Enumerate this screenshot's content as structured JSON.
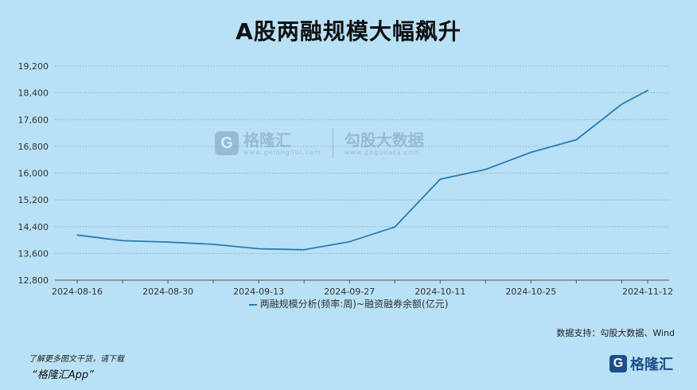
{
  "chart_data": {
    "type": "line",
    "title": "A股两融规模大幅飙升",
    "x": [
      "2024-08-16",
      "2024-08-23",
      "2024-08-30",
      "2024-09-06",
      "2024-09-13",
      "2024-09-20",
      "2024-09-27",
      "2024-10-04",
      "2024-10-11",
      "2024-10-18",
      "2024-10-25",
      "2024-11-01",
      "2024-11-08",
      "2024-11-12"
    ],
    "x_tick_labels": [
      "2024-08-16",
      "2024-08-30",
      "2024-09-13",
      "2024-09-27",
      "2024-10-11",
      "2024-10-25",
      "2024-11-12"
    ],
    "series": [
      {
        "name": "两融规模分析(频率:周)~融资融券余额(亿元)",
        "values": [
          14150,
          13980,
          13940,
          13870,
          13740,
          13710,
          13950,
          14390,
          15820,
          16110,
          16620,
          17000,
          18060,
          18470
        ]
      }
    ],
    "y_ticks": [
      "12,800",
      "13,600",
      "14,400",
      "15,200",
      "16,000",
      "16,800",
      "17,600",
      "18,400",
      "19,200"
    ],
    "ylim": [
      12800,
      19200
    ],
    "grid": true,
    "legend": "bottom",
    "color": "#2b7bb2"
  },
  "watermark": {
    "logo_letter": "G",
    "brand1": "格隆汇",
    "brand1_site": "www.gelonghui.com",
    "brand2": "勾股大数据",
    "brand2_site": "www.gogudata.com"
  },
  "source": "数据支持：勾股大数据、Wind",
  "footer": {
    "line1": "了解更多图文干货，请下载",
    "line2": "“格隆汇App”"
  },
  "logo": {
    "letter": "G",
    "text": "格隆汇"
  }
}
